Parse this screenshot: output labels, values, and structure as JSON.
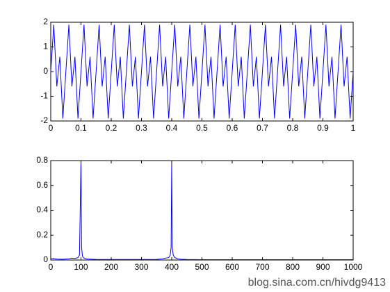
{
  "chart_data": [
    {
      "type": "line",
      "x": [
        0,
        0.01,
        0.02,
        0.03,
        0.04,
        0.05,
        0.06,
        0.07,
        0.08,
        0.09,
        0.1,
        0.11,
        0.12,
        0.13,
        0.14,
        0.15,
        0.16,
        0.17,
        0.18,
        0.19,
        0.2,
        0.21,
        0.22,
        0.23,
        0.24,
        0.25,
        0.26,
        0.27,
        0.28,
        0.29,
        0.3,
        0.31,
        0.32,
        0.33,
        0.34,
        0.35,
        0.36,
        0.37,
        0.38,
        0.39,
        0.4,
        0.41,
        0.42,
        0.43,
        0.44,
        0.45,
        0.46,
        0.47,
        0.48,
        0.49,
        0.5,
        0.51,
        0.52,
        0.53,
        0.54,
        0.55,
        0.56,
        0.57,
        0.58,
        0.59,
        0.6,
        0.61,
        0.62,
        0.63,
        0.64,
        0.65,
        0.66,
        0.67,
        0.68,
        0.69,
        0.7,
        0.71,
        0.72,
        0.73,
        0.74,
        0.75,
        0.76,
        0.77,
        0.78,
        0.79,
        0.8,
        0.81,
        0.82,
        0.83,
        0.84,
        0.85,
        0.86,
        0.87,
        0.88,
        0.89,
        0.9,
        0.91,
        0.92,
        0.93,
        0.94,
        0.95,
        0.96,
        0.97,
        0.98,
        0.99,
        1
      ],
      "series": [
        {
          "color": "#0000ff",
          "values": [
            0,
            1.9,
            -0.6,
            0.6,
            -1.9,
            0,
            1.9,
            -0.6,
            0.6,
            -1.9,
            0,
            1.9,
            -0.6,
            0.6,
            -1.9,
            0,
            1.9,
            -0.6,
            0.6,
            -1.9,
            0,
            1.9,
            -0.6,
            0.6,
            -1.9,
            0,
            1.9,
            -0.6,
            0.6,
            -1.9,
            0,
            1.9,
            -0.6,
            0.6,
            -1.9,
            0,
            1.9,
            -0.6,
            0.6,
            -1.9,
            0,
            1.9,
            -0.6,
            0.6,
            -1.9,
            0,
            1.9,
            -0.6,
            0.6,
            -1.9,
            0,
            1.9,
            -0.6,
            0.6,
            -1.9,
            0,
            1.9,
            -0.6,
            0.6,
            -1.9,
            0,
            1.9,
            -0.6,
            0.6,
            -1.9,
            0,
            1.9,
            -0.6,
            0.6,
            -1.9,
            0,
            1.9,
            -0.6,
            0.6,
            -1.9,
            0,
            1.9,
            -0.6,
            0.6,
            -1.9,
            0,
            1.9,
            -0.6,
            0.6,
            -1.9,
            0,
            1.9,
            -0.6,
            0.6,
            -1.9,
            0,
            1.9,
            -0.6,
            0.6,
            -1.9,
            0,
            1.9,
            -0.6,
            0.6,
            -1.9,
            0
          ]
        }
      ],
      "xlim": [
        0,
        1
      ],
      "xticks": [
        0,
        0.1,
        0.2,
        0.3,
        0.4,
        0.5,
        0.6,
        0.7,
        0.8,
        0.9,
        1
      ],
      "ylim": [
        -2,
        2
      ],
      "yticks": [
        -2,
        -1,
        0,
        1,
        2
      ]
    },
    {
      "type": "line",
      "x": [
        0,
        10,
        20,
        40,
        60,
        70,
        80,
        90,
        95,
        98,
        100,
        102,
        105,
        110,
        120,
        150,
        200,
        250,
        300,
        350,
        370,
        380,
        390,
        395,
        398,
        400,
        402,
        405,
        410,
        420,
        430,
        450,
        500,
        600,
        700,
        800,
        900,
        1000
      ],
      "series": [
        {
          "color": "#0000ff",
          "values": [
            0.01,
            0.012,
            0.008,
            0.006,
            0.01,
            0.015,
            0.012,
            0.02,
            0.04,
            0.49,
            0.8,
            0.1,
            0.03,
            0.015,
            0.008,
            0.005,
            0.004,
            0.004,
            0.004,
            0.005,
            0.01,
            0.015,
            0.02,
            0.04,
            0.1,
            0.8,
            0.1,
            0.04,
            0.02,
            0.01,
            0.006,
            0.004,
            0.003,
            0.003,
            0.003,
            0.003,
            0.003,
            0.003
          ]
        }
      ],
      "xlim": [
        0,
        1000
      ],
      "xticks": [
        0,
        100,
        200,
        300,
        400,
        500,
        600,
        700,
        800,
        900,
        1000
      ],
      "ylim": [
        0,
        0.8
      ],
      "yticks": [
        0,
        0.2,
        0.4,
        0.6,
        0.8
      ]
    }
  ],
  "watermark": "blog.sina.com.cn/hivdg9413"
}
